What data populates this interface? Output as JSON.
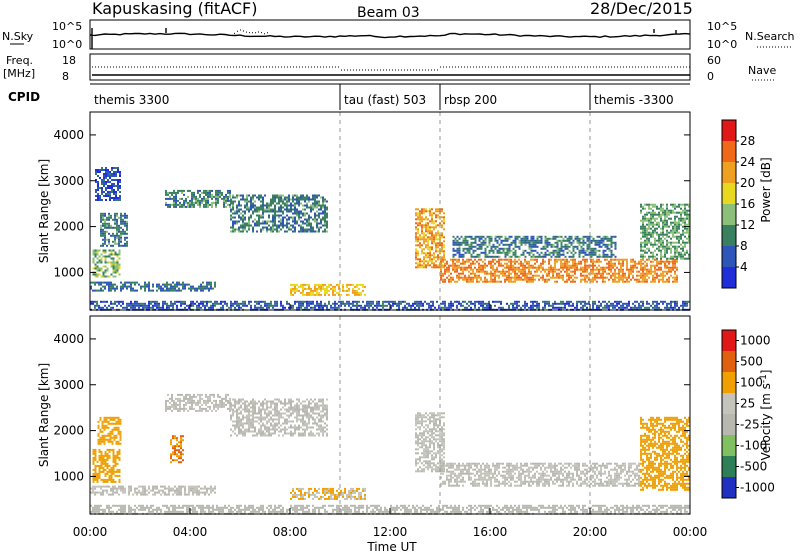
{
  "header": {
    "station": "Kapuskasing (fitACF)",
    "beam": "Beam 03",
    "date": "28/Dec/2015"
  },
  "summary": {
    "nsky_label": "N.Sky",
    "nsky_ticks": [
      "10^5",
      "10^0"
    ],
    "nsearch_label": "N.Search",
    "nsearch_ticks": [
      "10^5",
      "10^0"
    ],
    "freq_label": "Freq.",
    "freq_unit": "[MHz]",
    "freq_ticks": [
      "18",
      "8"
    ],
    "nave_label": "Nave",
    "nave_ticks": [
      "60",
      "0"
    ],
    "cpid_label": "CPID",
    "cpid_segments": [
      {
        "label": "themis 3300",
        "start_h": 0.0,
        "end_h": 10.0
      },
      {
        "label": "tau (fast) 503",
        "start_h": 10.0,
        "end_h": 14.0
      },
      {
        "label": "rbsp 200",
        "start_h": 14.0,
        "end_h": 20.0
      },
      {
        "label": "themis -3300",
        "start_h": 20.0,
        "end_h": 24.0
      }
    ]
  },
  "axes": {
    "ylabel": "Slant Range [km]",
    "xlabel": "Time UT",
    "y_ticks": [
      "1000",
      "2000",
      "3000",
      "4000"
    ],
    "x_ticks": [
      "00:00",
      "04:00",
      "08:00",
      "12:00",
      "16:00",
      "20:00",
      "00:00"
    ]
  },
  "power_scale": {
    "label": "Power [dB]",
    "ticks": [
      "4",
      "8",
      "12",
      "16",
      "20",
      "24",
      "28"
    ],
    "colors": [
      "#1f2ed8",
      "#2e55b8",
      "#3a8060",
      "#8cc07a",
      "#e8d820",
      "#f0a020",
      "#f06818",
      "#e01818"
    ]
  },
  "velocity_scale": {
    "label": "Velocity [m s^-1]",
    "ticks": [
      "1000",
      "500",
      "100",
      "25",
      "-25",
      "-100",
      "-500",
      "-1000"
    ],
    "colors": [
      "#2030c0",
      "#2e7e58",
      "#80c060",
      "#b8b8b0",
      "#c4c4bc",
      "#f0a000",
      "#e06010",
      "#e01818"
    ]
  },
  "chart_data": [
    {
      "type": "heatmap",
      "title": "Power",
      "x_range_hours": [
        0,
        24
      ],
      "y_range_km": [
        180,
        4500
      ],
      "cpid_boundaries_hours": [
        10.0,
        14.0,
        20.0
      ],
      "echo_bands": [
        {
          "t_start_h": 0.1,
          "t_end_h": 1.2,
          "range_start_km": 900,
          "range_end_km": 1500,
          "power_db": 14
        },
        {
          "t_start_h": 0.4,
          "t_end_h": 1.5,
          "range_start_km": 1600,
          "range_end_km": 2300,
          "power_db": 9
        },
        {
          "t_start_h": 0.2,
          "t_end_h": 1.2,
          "range_start_km": 2600,
          "range_end_km": 3300,
          "power_db": 5
        },
        {
          "t_start_h": 0.0,
          "t_end_h": 5.0,
          "range_start_km": 600,
          "range_end_km": 800,
          "power_db": 8
        },
        {
          "t_start_h": 3.0,
          "t_end_h": 5.6,
          "range_start_km": 2450,
          "range_end_km": 2800,
          "power_db": 10
        },
        {
          "t_start_h": 5.6,
          "t_end_h": 9.5,
          "range_start_km": 1900,
          "range_end_km": 2700,
          "power_db": 9
        },
        {
          "t_start_h": 8.0,
          "t_end_h": 11.0,
          "range_start_km": 500,
          "range_end_km": 750,
          "power_db": 20
        },
        {
          "t_start_h": 13.0,
          "t_end_h": 14.2,
          "range_start_km": 1100,
          "range_end_km": 2400,
          "power_db": 22
        },
        {
          "t_start_h": 14.0,
          "t_end_h": 23.5,
          "range_start_km": 800,
          "range_end_km": 1300,
          "power_db": 24
        },
        {
          "t_start_h": 14.5,
          "t_end_h": 21.0,
          "range_start_km": 1350,
          "range_end_km": 1800,
          "power_db": 9
        },
        {
          "t_start_h": 22.0,
          "t_end_h": 24.0,
          "range_start_km": 1300,
          "range_end_km": 2500,
          "power_db": 12
        },
        {
          "t_start_h": 0.0,
          "t_end_h": 24.0,
          "range_start_km": 180,
          "range_end_km": 380,
          "power_db": 6
        }
      ]
    },
    {
      "type": "heatmap",
      "title": "Velocity",
      "x_range_hours": [
        0,
        24
      ],
      "y_range_km": [
        180,
        4500
      ],
      "cpid_boundaries_hours": [
        10.0,
        14.0,
        20.0
      ],
      "echo_bands": [
        {
          "t_start_h": 0.1,
          "t_end_h": 1.2,
          "range_start_km": 900,
          "range_end_km": 1600,
          "velocity": -200
        },
        {
          "t_start_h": 0.3,
          "t_end_h": 1.2,
          "range_start_km": 1700,
          "range_end_km": 2300,
          "velocity": -250
        },
        {
          "t_start_h": 0.0,
          "t_end_h": 5.0,
          "range_start_km": 600,
          "range_end_km": 800,
          "velocity": 0
        },
        {
          "t_start_h": 3.2,
          "t_end_h": 3.7,
          "range_start_km": 1300,
          "range_end_km": 1900,
          "velocity": -300
        },
        {
          "t_start_h": 3.0,
          "t_end_h": 5.6,
          "range_start_km": 2450,
          "range_end_km": 2800,
          "velocity": 0
        },
        {
          "t_start_h": 5.6,
          "t_end_h": 9.5,
          "range_start_km": 1900,
          "range_end_km": 2700,
          "velocity": 0
        },
        {
          "t_start_h": 8.0,
          "t_end_h": 11.0,
          "range_start_km": 500,
          "range_end_km": 750,
          "velocity": -60
        },
        {
          "t_start_h": 13.0,
          "t_end_h": 14.2,
          "range_start_km": 1100,
          "range_end_km": 2400,
          "velocity": 0
        },
        {
          "t_start_h": 14.0,
          "t_end_h": 22.0,
          "range_start_km": 800,
          "range_end_km": 1300,
          "velocity": 0
        },
        {
          "t_start_h": 22.0,
          "t_end_h": 24.0,
          "range_start_km": 700,
          "range_end_km": 2300,
          "velocity": -250
        },
        {
          "t_start_h": 0.0,
          "t_end_h": 24.0,
          "range_start_km": 180,
          "range_end_km": 380,
          "velocity": 50
        }
      ]
    }
  ]
}
